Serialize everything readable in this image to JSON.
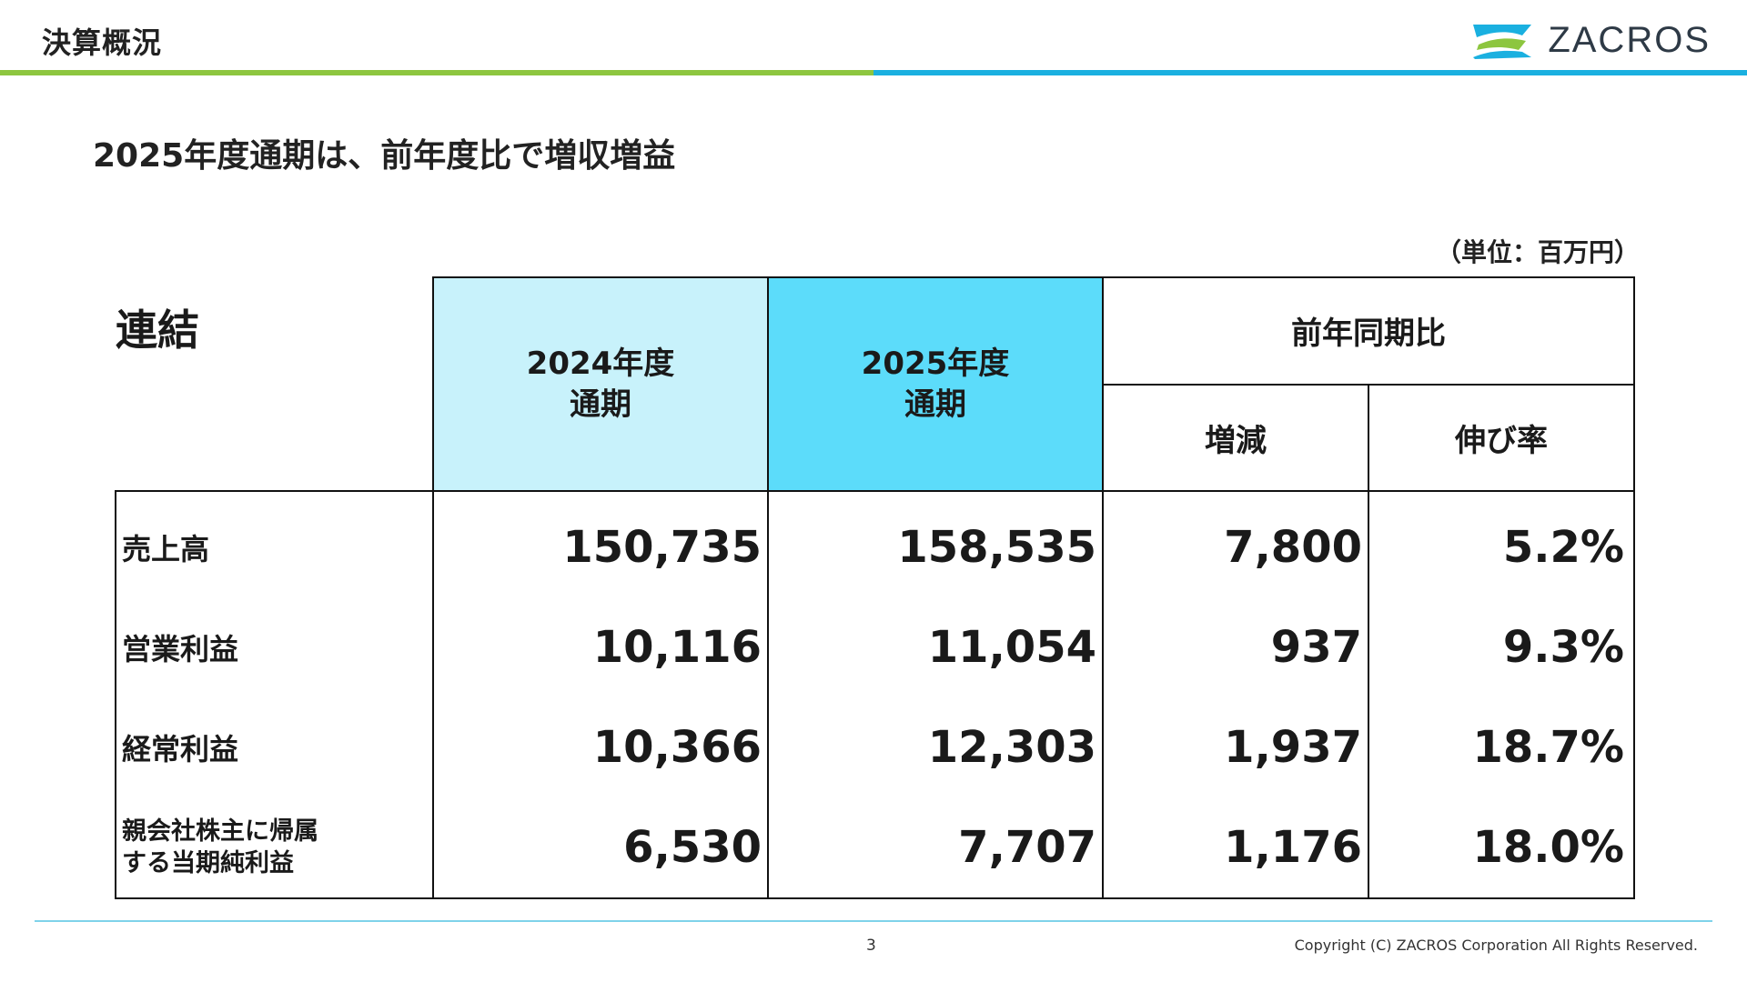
{
  "header": {
    "title": "決算概況",
    "logo_text": "ZACROS",
    "bar_left_color": "#8dc63f",
    "bar_right_color": "#1ab0e0",
    "logo_colors": [
      "#1ab0e0",
      "#8dc63f"
    ]
  },
  "subtitle": "2025年度通期は、前年度比で増収増益",
  "unit": "（単位：百万円）",
  "table": {
    "corner": "連結",
    "col_prev_line1": "2024年度",
    "col_prev_line2": "通期",
    "col_curr_line1": "2025年度",
    "col_curr_line2": "通期",
    "col_group": "前年同期比",
    "col_change": "増減",
    "col_rate": "伸び率",
    "col_prev_color": "#c8f2fb",
    "col_curr_color": "#5cdcfa",
    "rows": [
      {
        "label": "売上高",
        "prev": "150,735",
        "curr": "158,535",
        "change": "7,800",
        "rate": "5.2%"
      },
      {
        "label": "営業利益",
        "prev": "10,116",
        "curr": "11,054",
        "change": "937",
        "rate": "9.3%"
      },
      {
        "label": "経常利益",
        "prev": "10,366",
        "curr": "12,303",
        "change": "1,937",
        "rate": "18.7%"
      },
      {
        "label_line1": "親会社株主に帰属",
        "label_line2": "する当期純利益",
        "prev": "6,530",
        "curr": "7,707",
        "change": "1,176",
        "rate": "18.0%"
      }
    ]
  },
  "footer": {
    "page_number": "3",
    "copyright": "Copyright (C) ZACROS Corporation  All Rights Reserved.",
    "line_color": "#7fd3ea"
  }
}
